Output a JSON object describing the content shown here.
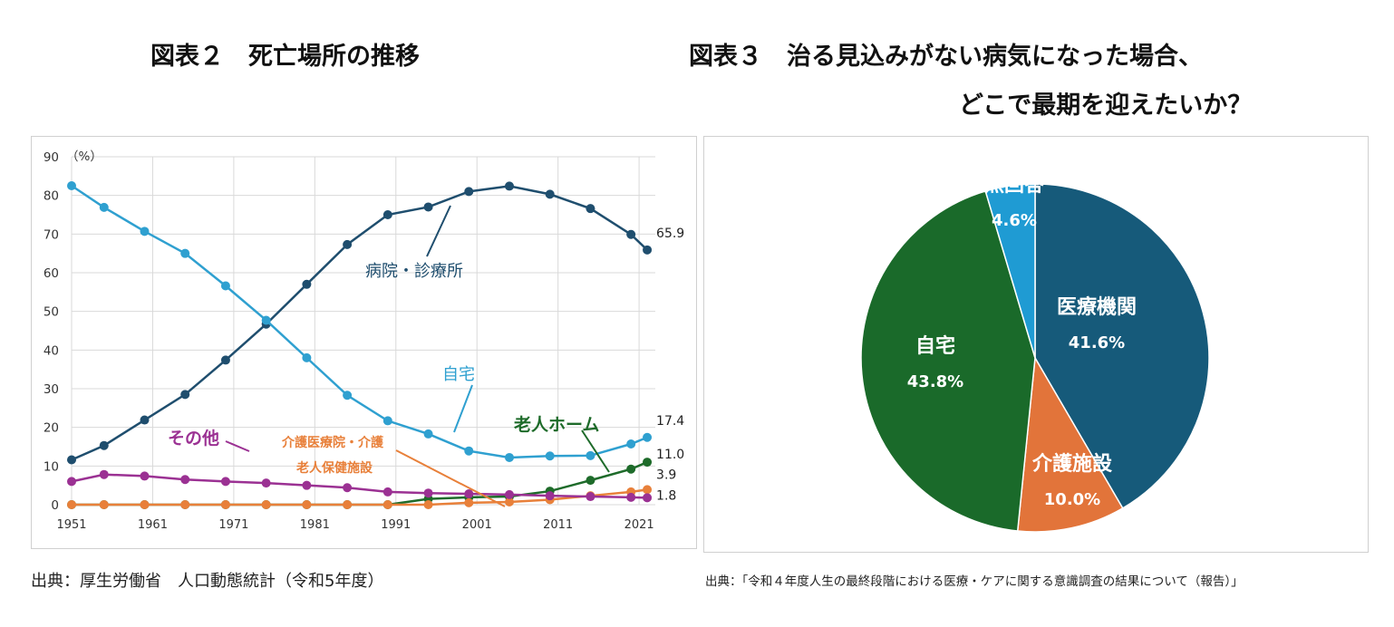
{
  "left": {
    "title": "図表２　死亡場所の推移",
    "source": "出典：厚生労働省　人口動態統計（令和5年度）"
  },
  "right": {
    "title_line1": "図表３　治る見込みがない病気になった場合、",
    "title_line2": "どこで最期を迎えたいか？",
    "source": "出典：「令和４年度人生の最終段階における医療・ケアに関する意識調査の結果について（報告）」"
  },
  "chart_data": [
    {
      "type": "line",
      "ylabel": "（%）",
      "ylim": [
        0,
        90
      ],
      "xlim": [
        1951,
        2023
      ],
      "y_ticks": [
        0,
        10,
        20,
        30,
        40,
        50,
        60,
        70,
        80,
        90
      ],
      "x_ticks": [
        1951,
        1961,
        1971,
        1981,
        1991,
        2001,
        2011,
        2021
      ],
      "grid": true,
      "series": [
        {
          "name": "病院・診療所",
          "color": "#1f4e6e",
          "x": [
            1951,
            1955,
            1960,
            1965,
            1970,
            1975,
            1980,
            1985,
            1990,
            1995,
            2000,
            2005,
            2010,
            2015,
            2020,
            2022
          ],
          "values": [
            11.6,
            15.3,
            21.9,
            28.5,
            37.4,
            46.7,
            57.0,
            67.3,
            75.0,
            77.0,
            81.0,
            82.4,
            80.3,
            76.6,
            69.9,
            65.9
          ],
          "end_label": "65.9"
        },
        {
          "name": "自宅",
          "color": "#2fa0d0",
          "x": [
            1951,
            1955,
            1960,
            1965,
            1970,
            1975,
            1980,
            1985,
            1990,
            1995,
            2000,
            2005,
            2010,
            2015,
            2020,
            2022
          ],
          "values": [
            82.5,
            76.9,
            70.7,
            65.0,
            56.6,
            47.7,
            38.0,
            28.3,
            21.7,
            18.3,
            13.9,
            12.2,
            12.6,
            12.7,
            15.7,
            17.4
          ],
          "end_label": "17.4"
        },
        {
          "name": "老人ホーム",
          "color": "#1e6b2a",
          "x": [
            1951,
            1955,
            1960,
            1965,
            1970,
            1975,
            1980,
            1985,
            1990,
            1995,
            2000,
            2005,
            2010,
            2015,
            2020,
            2022
          ],
          "values": [
            0,
            0,
            0,
            0,
            0,
            0,
            0,
            0,
            0,
            1.5,
            1.9,
            2.1,
            3.5,
            6.3,
            9.2,
            11.0
          ],
          "end_label": "11.0"
        },
        {
          "name": "介護医療院・介護老人保健施設",
          "color": "#e8803a",
          "x": [
            1951,
            1955,
            1960,
            1965,
            1970,
            1975,
            1980,
            1985,
            1990,
            1995,
            2000,
            2005,
            2010,
            2015,
            2020,
            2022
          ],
          "values": [
            0,
            0,
            0,
            0,
            0,
            0,
            0,
            0,
            0,
            0,
            0.5,
            0.7,
            1.3,
            2.3,
            3.3,
            3.9
          ],
          "end_label": "3.9"
        },
        {
          "name": "その他",
          "color": "#9b3193",
          "x": [
            1951,
            1955,
            1960,
            1965,
            1970,
            1975,
            1980,
            1985,
            1990,
            1995,
            2000,
            2005,
            2010,
            2015,
            2020,
            2022
          ],
          "values": [
            6.0,
            7.8,
            7.4,
            6.5,
            6.0,
            5.6,
            5.0,
            4.4,
            3.3,
            3.0,
            2.8,
            2.6,
            2.3,
            2.1,
            1.9,
            1.8
          ],
          "end_label": "1.8"
        }
      ]
    },
    {
      "type": "pie",
      "slices": [
        {
          "label": "医療機関",
          "value": 41.6,
          "value_label": "41.6%",
          "color": "#165a7a"
        },
        {
          "label": "介護施設",
          "value": 10.0,
          "value_label": "10.0%",
          "color": "#e2743a"
        },
        {
          "label": "自宅",
          "value": 43.8,
          "value_label": "43.8%",
          "color": "#1a6a2a"
        },
        {
          "label": "無回答",
          "value": 4.6,
          "value_label": "4.6%",
          "color": "#1f9bd3"
        }
      ]
    }
  ]
}
